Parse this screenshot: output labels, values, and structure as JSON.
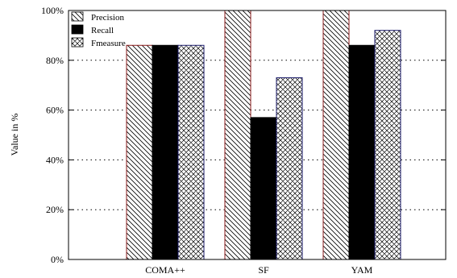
{
  "chart_data": {
    "type": "bar",
    "title": "",
    "xlabel": "",
    "ylabel": "Value in %",
    "ylim": [
      0,
      100
    ],
    "yticks": [
      "0%",
      "20%",
      "40%",
      "60%",
      "80%",
      "100%"
    ],
    "grid": "horizontal dotted",
    "legend_position": "top-left",
    "categories": [
      "COMA++",
      "SF",
      "YAM"
    ],
    "series": [
      {
        "name": "Precision",
        "values": [
          86,
          100,
          100
        ],
        "pattern": "diagonal-hatch",
        "outline": "#8b1a1a"
      },
      {
        "name": "Recall",
        "values": [
          86,
          57,
          86
        ],
        "pattern": "solid-black",
        "outline": "#000000"
      },
      {
        "name": "Fmeasure",
        "values": [
          86,
          73,
          92
        ],
        "pattern": "crosshatch",
        "outline": "#1a1a6b"
      }
    ]
  }
}
